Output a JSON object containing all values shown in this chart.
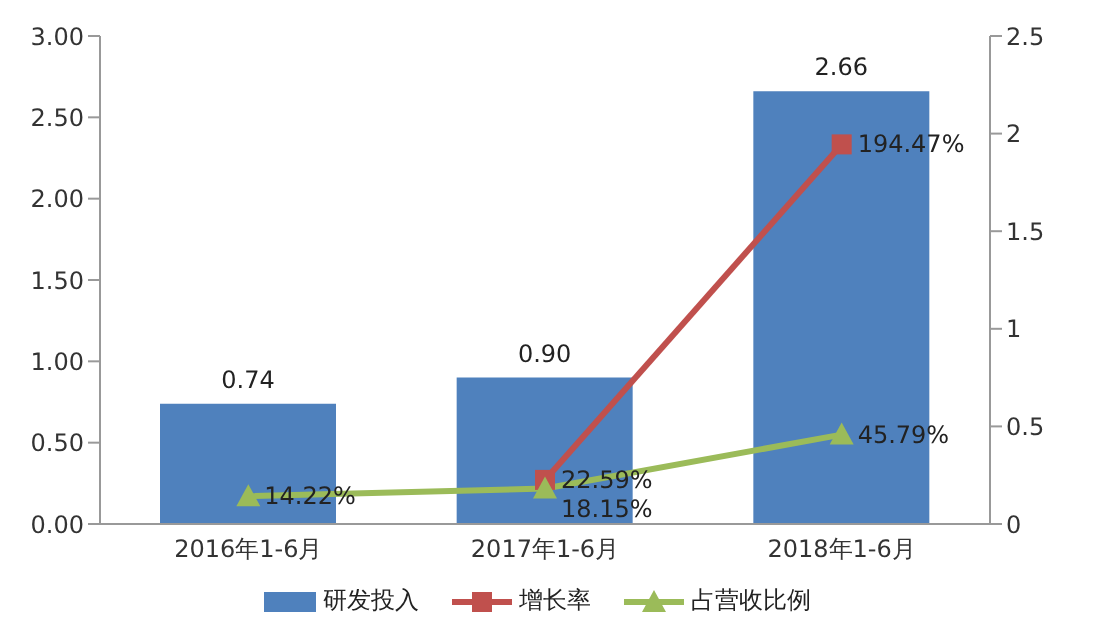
{
  "chart_data": {
    "type": "bar",
    "categories": [
      "2016年1-6月",
      "2017年1-6月",
      "2018年1-6月"
    ],
    "series": [
      {
        "name": "研发投入",
        "color": "#4f81bd",
        "values": [
          0.74,
          0.9,
          2.66
        ],
        "value_labels": [
          "0.74",
          "0.90",
          "2.66"
        ]
      },
      {
        "name": "增长率",
        "type": "line",
        "axis": "y2",
        "marker": "square",
        "color": "#c0504d",
        "values": [
          null,
          0.2259,
          1.9447
        ],
        "value_labels": [
          null,
          "22.59%",
          "194.47%"
        ]
      },
      {
        "name": "占营收比例",
        "type": "line",
        "axis": "y2",
        "marker": "triangle",
        "color": "#9bbb59",
        "values": [
          0.1422,
          0.1815,
          0.4579
        ],
        "value_labels": [
          "14.22%",
          "18.15%",
          "45.79%"
        ]
      }
    ],
    "ylim": [
      0,
      3
    ],
    "yticks": [
      {
        "value": 0,
        "label": "0.00"
      },
      {
        "value": 0.5,
        "label": "0.50"
      },
      {
        "value": 1,
        "label": "1.00"
      },
      {
        "value": 1.5,
        "label": "1.50"
      },
      {
        "value": 2,
        "label": "2.00"
      },
      {
        "value": 2.5,
        "label": "2.50"
      },
      {
        "value": 3,
        "label": "3.00"
      }
    ],
    "y2lim": [
      0,
      2.5
    ],
    "y2ticks": [
      0,
      0.5,
      1,
      1.5,
      2,
      2.5
    ],
    "grid": false,
    "legend": "bottom",
    "line_style": "solid"
  }
}
